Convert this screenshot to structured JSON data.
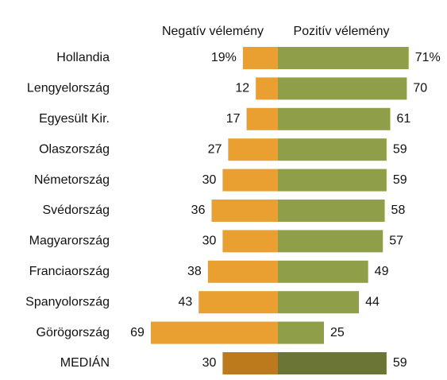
{
  "chart_data": {
    "type": "diverging_bar",
    "categories": [
      "Hollandia",
      "Lengyelország",
      "Egyesült Kir.",
      "Olaszország",
      "Németország",
      "Svédország",
      "Magyarország",
      "Franciaország",
      "Spanyolország",
      "Görögország",
      "MEDIÁN"
    ],
    "series": [
      {
        "name": "Negatív vélemény",
        "color": "#e9a030",
        "colors": [
          "#e9a030",
          "#e9a030",
          "#e9a030",
          "#e9a030",
          "#e9a030",
          "#e9a030",
          "#e9a030",
          "#e9a030",
          "#e9a030",
          "#e9a030",
          "#bc7a1c"
        ],
        "values": [
          19,
          12,
          17,
          27,
          30,
          36,
          30,
          38,
          43,
          69,
          30
        ],
        "value_labels": [
          "19%",
          "12",
          "17",
          "27",
          "30",
          "36",
          "30",
          "38",
          "43",
          "69",
          "30"
        ]
      },
      {
        "name": "Pozitív vélemény",
        "color": "#8f9e48",
        "colors": [
          "#8f9e48",
          "#8f9e48",
          "#8f9e48",
          "#8f9e48",
          "#8f9e48",
          "#8f9e48",
          "#8f9e48",
          "#8f9e48",
          "#8f9e48",
          "#8f9e48",
          "#6b7536"
        ],
        "values": [
          71,
          70,
          61,
          59,
          59,
          58,
          57,
          49,
          44,
          25,
          59
        ],
        "value_labels": [
          "71%",
          "70",
          "61",
          "59",
          "59",
          "58",
          "57",
          "49",
          "44",
          "25",
          "59"
        ]
      }
    ]
  }
}
